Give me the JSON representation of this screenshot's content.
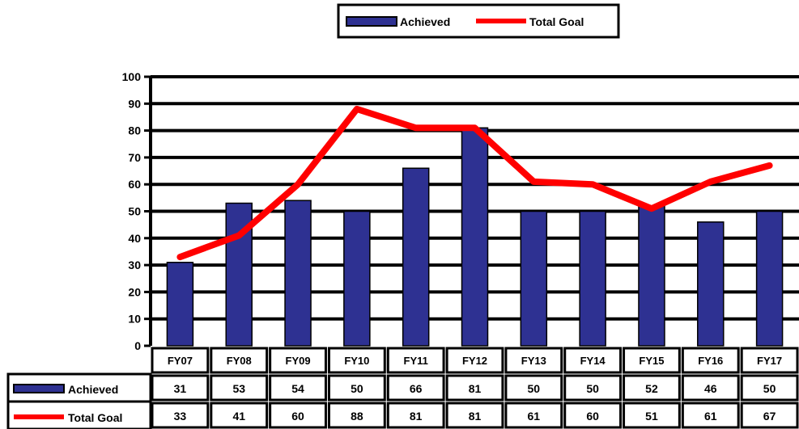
{
  "chart_data": {
    "type": "bar",
    "title": "",
    "xlabel": "",
    "ylabel": "",
    "ylim": [
      0,
      100
    ],
    "y_ticks": [
      "0",
      "10",
      "20",
      "30",
      "40",
      "50",
      "60",
      "70",
      "80",
      "90",
      "100"
    ],
    "grid": true,
    "legend_position": "top-center",
    "categories": [
      "FY07",
      "FY08",
      "FY09",
      "FY10",
      "FY11",
      "FY12",
      "FY13",
      "FY14",
      "FY15",
      "FY16",
      "FY17"
    ],
    "series": [
      {
        "name": "Achieved",
        "kind": "bar",
        "color": "#2e3192",
        "values": [
          31,
          53,
          54,
          50,
          66,
          81,
          50,
          50,
          52,
          46,
          50
        ],
        "table_labels": [
          "31",
          "53",
          "54",
          "50",
          "66",
          "81",
          "50",
          "50",
          "52",
          "46",
          "50"
        ]
      },
      {
        "name": "Total Goal",
        "kind": "line",
        "color": "#ff0000",
        "values": [
          33,
          41,
          60,
          88,
          81,
          81,
          61,
          60,
          51,
          61,
          67
        ],
        "table_labels": [
          "33",
          "41",
          "60",
          "88",
          "81",
          "81",
          "61",
          "60",
          "51",
          "61",
          "67"
        ]
      }
    ],
    "data_table": true
  }
}
